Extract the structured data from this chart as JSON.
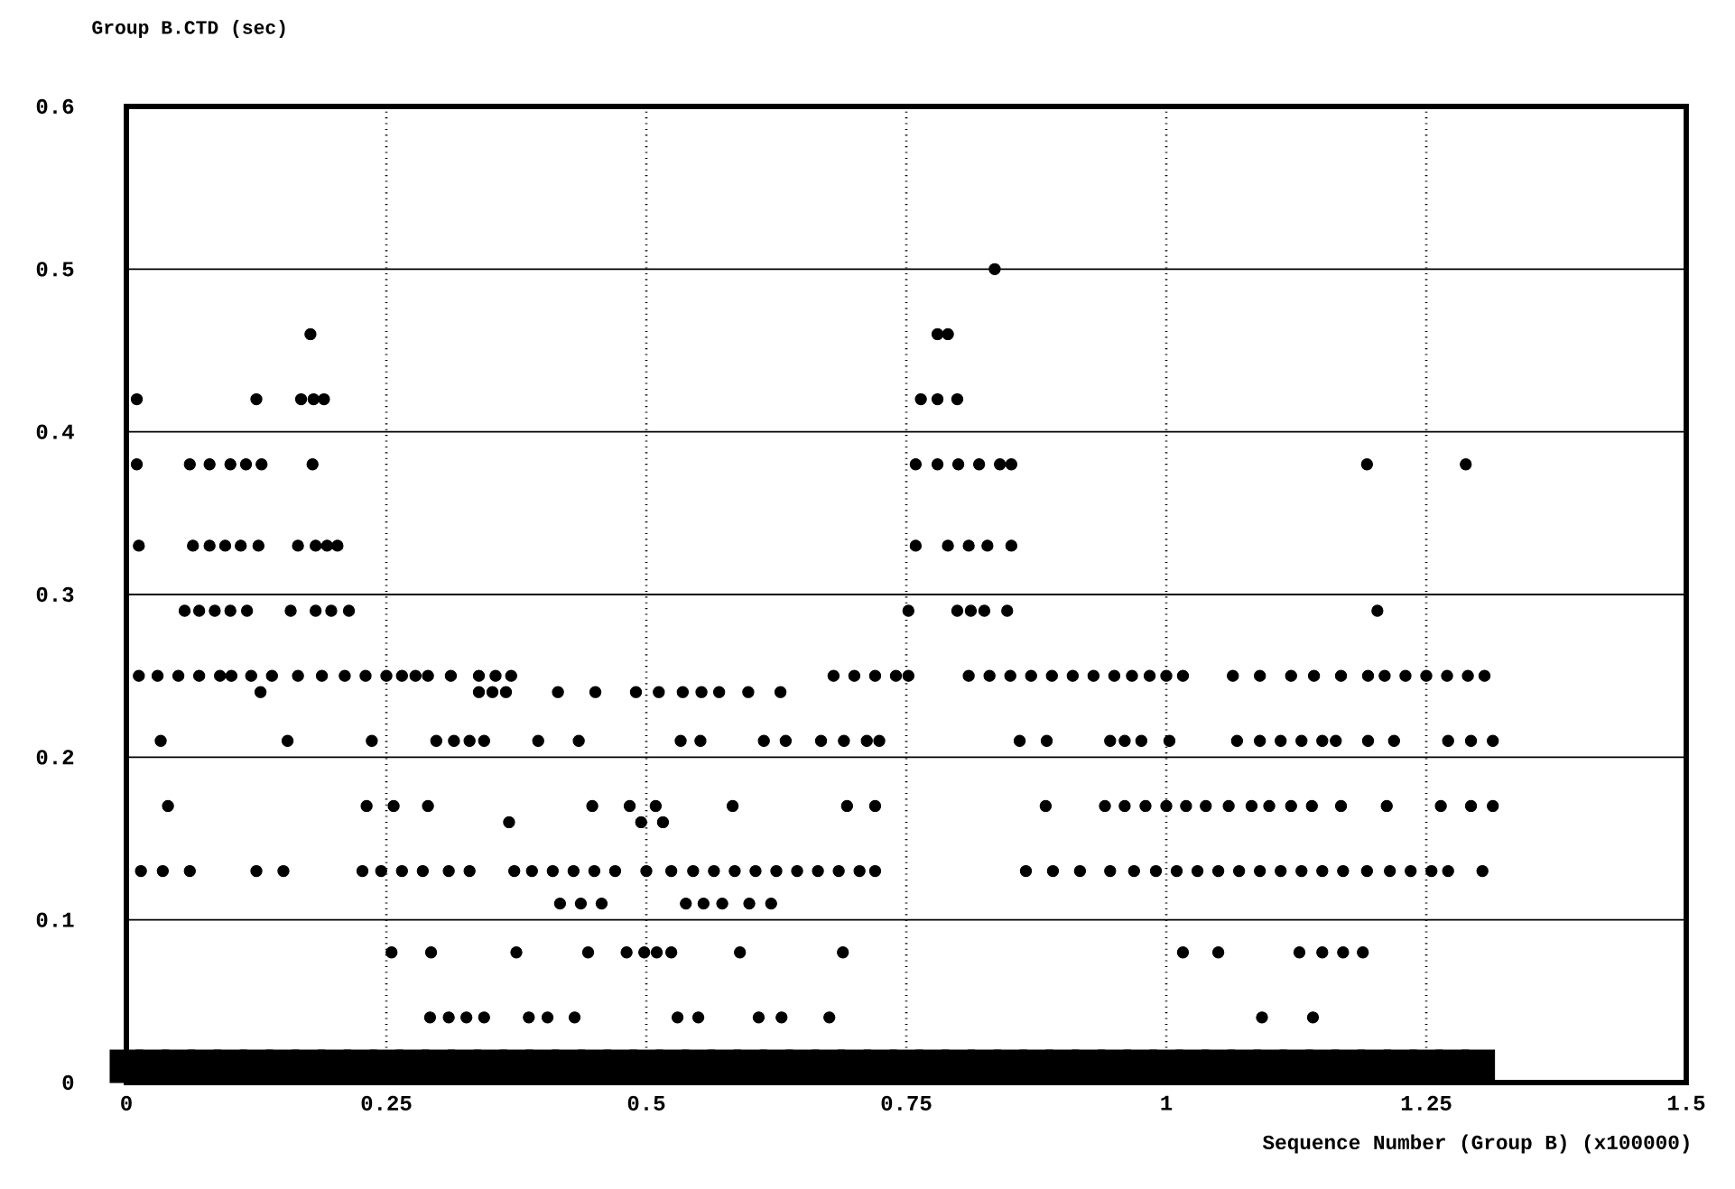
{
  "chart_data": {
    "type": "scatter",
    "ylabel": "Group B.CTD (sec)",
    "xlabel": "Sequence Number (Group B) (x100000)",
    "xlim": [
      0,
      1.5
    ],
    "ylim": [
      0,
      0.6
    ],
    "xticks": [
      0,
      0.25,
      0.5,
      0.75,
      1,
      1.25,
      1.5
    ],
    "yticks": [
      0,
      0.1,
      0.2,
      0.3,
      0.4,
      0.5,
      0.6
    ],
    "grid": true,
    "marker": "circle",
    "series": [
      {
        "color": "#000000",
        "x": [
          0.835
        ],
        "values": [
          0.5
        ]
      },
      {
        "color": "#000000",
        "x": [
          0.177,
          0.78,
          0.79
        ],
        "values": [
          0.46,
          0.46,
          0.46
        ]
      },
      {
        "color": "#000000",
        "x": [
          0.01,
          0.125,
          0.168,
          0.18,
          0.19,
          0.764,
          0.78,
          0.799
        ],
        "values": [
          0.42,
          0.42,
          0.42,
          0.42,
          0.42,
          0.42,
          0.42,
          0.42
        ]
      },
      {
        "color": "#000000",
        "x": [
          0.01,
          0.061,
          0.08,
          0.1,
          0.115,
          0.13,
          0.179,
          0.759,
          0.78,
          0.8,
          0.82,
          0.84,
          0.851,
          1.193,
          1.288
        ],
        "values": [
          0.38,
          0.38,
          0.38,
          0.38,
          0.38,
          0.38,
          0.38,
          0.38,
          0.38,
          0.38,
          0.38,
          0.38,
          0.38,
          0.38,
          0.38
        ]
      },
      {
        "color": "#000000",
        "x": [
          0.012,
          0.064,
          0.08,
          0.095,
          0.11,
          0.127,
          0.165,
          0.182,
          0.193,
          0.203,
          0.759,
          0.79,
          0.81,
          0.828,
          0.851
        ],
        "values": [
          0.33,
          0.33,
          0.33,
          0.33,
          0.33,
          0.33,
          0.33,
          0.33,
          0.33,
          0.33,
          0.33,
          0.33,
          0.33,
          0.33,
          0.33
        ]
      },
      {
        "color": "#000000",
        "x": [
          0.056,
          0.07,
          0.085,
          0.1,
          0.116,
          0.158,
          0.182,
          0.197,
          0.214,
          0.752,
          0.799,
          0.812,
          0.825,
          0.847,
          1.203
        ],
        "values": [
          0.29,
          0.29,
          0.29,
          0.29,
          0.29,
          0.29,
          0.29,
          0.29,
          0.29,
          0.29,
          0.29,
          0.29,
          0.29,
          0.29,
          0.29
        ]
      },
      {
        "color": "#000000",
        "x": [
          0.012,
          0.03,
          0.05,
          0.07,
          0.09,
          0.101,
          0.12,
          0.14,
          0.165,
          0.188,
          0.21,
          0.23,
          0.25,
          0.265,
          0.278,
          0.29,
          0.312,
          0.339,
          0.355,
          0.37,
          0.68,
          0.7,
          0.72,
          0.74,
          0.752,
          0.81,
          0.83,
          0.85,
          0.87,
          0.89,
          0.91,
          0.93,
          0.95,
          0.967,
          0.984,
          1.0,
          1.016,
          1.064,
          1.09,
          1.12,
          1.142,
          1.168,
          1.194,
          1.21,
          1.23,
          1.25,
          1.27,
          1.29,
          1.306
        ],
        "values": [
          0.25,
          0.25,
          0.25,
          0.25,
          0.25,
          0.25,
          0.25,
          0.25,
          0.25,
          0.25,
          0.25,
          0.25,
          0.25,
          0.25,
          0.25,
          0.25,
          0.25,
          0.25,
          0.25,
          0.25,
          0.25,
          0.25,
          0.25,
          0.25,
          0.25,
          0.25,
          0.25,
          0.25,
          0.25,
          0.25,
          0.25,
          0.25,
          0.25,
          0.25,
          0.25,
          0.25,
          0.25,
          0.25,
          0.25,
          0.25,
          0.25,
          0.25,
          0.25,
          0.25,
          0.25,
          0.25,
          0.25,
          0.25,
          0.25
        ]
      },
      {
        "color": "#000000",
        "x": [
          0.129,
          0.339,
          0.352,
          0.365,
          0.415,
          0.451,
          0.49,
          0.512,
          0.535,
          0.553,
          0.57,
          0.598,
          0.629
        ],
        "values": [
          0.24,
          0.24,
          0.24,
          0.24,
          0.24,
          0.24,
          0.24,
          0.24,
          0.24,
          0.24,
          0.24,
          0.24,
          0.24
        ]
      },
      {
        "color": "#000000",
        "x": [
          0.033,
          0.155,
          0.236,
          0.298,
          0.315,
          0.33,
          0.344,
          0.396,
          0.435,
          0.533,
          0.552,
          0.613,
          0.634,
          0.668,
          0.69,
          0.712,
          0.724,
          0.859,
          0.885,
          0.946,
          0.96,
          0.976,
          1.003,
          1.068,
          1.09,
          1.11,
          1.13,
          1.15,
          1.163,
          1.194,
          1.219,
          1.271,
          1.293,
          1.314
        ],
        "values": [
          0.21,
          0.21,
          0.21,
          0.21,
          0.21,
          0.21,
          0.21,
          0.21,
          0.21,
          0.21,
          0.21,
          0.21,
          0.21,
          0.21,
          0.21,
          0.21,
          0.21,
          0.21,
          0.21,
          0.21,
          0.21,
          0.21,
          0.21,
          0.21,
          0.21,
          0.21,
          0.21,
          0.21,
          0.21,
          0.21,
          0.21,
          0.21,
          0.21,
          0.21
        ]
      },
      {
        "color": "#000000",
        "x": [
          0.04,
          0.231,
          0.257,
          0.29,
          0.448,
          0.484,
          0.509,
          0.583,
          0.693,
          0.72,
          0.884,
          0.941,
          0.96,
          0.98,
          1.0,
          1.019,
          1.038,
          1.06,
          1.082,
          1.099,
          1.12,
          1.14,
          1.168,
          1.212,
          1.264,
          1.293,
          1.314
        ],
        "values": [
          0.17,
          0.17,
          0.17,
          0.17,
          0.17,
          0.17,
          0.17,
          0.17,
          0.17,
          0.17,
          0.17,
          0.17,
          0.17,
          0.17,
          0.17,
          0.17,
          0.17,
          0.17,
          0.17,
          0.17,
          0.17,
          0.17,
          0.17,
          0.17,
          0.17,
          0.17,
          0.17
        ]
      },
      {
        "color": "#000000",
        "x": [
          0.368,
          0.495,
          0.516
        ],
        "values": [
          0.16,
          0.16,
          0.16
        ]
      },
      {
        "color": "#000000",
        "x": [
          0.014,
          0.035,
          0.061,
          0.125,
          0.151,
          0.227,
          0.245,
          0.265,
          0.285,
          0.31,
          0.33,
          0.373,
          0.39,
          0.41,
          0.43,
          0.45,
          0.47,
          0.5,
          0.524,
          0.545,
          0.565,
          0.585,
          0.605,
          0.625,
          0.645,
          0.665,
          0.685,
          0.705,
          0.72,
          0.865,
          0.891,
          0.917,
          0.946,
          0.969,
          0.99,
          1.01,
          1.03,
          1.05,
          1.07,
          1.09,
          1.11,
          1.13,
          1.15,
          1.17,
          1.193,
          1.215,
          1.235,
          1.255,
          1.271,
          1.304
        ],
        "values": [
          0.13,
          0.13,
          0.13,
          0.13,
          0.13,
          0.13,
          0.13,
          0.13,
          0.13,
          0.13,
          0.13,
          0.13,
          0.13,
          0.13,
          0.13,
          0.13,
          0.13,
          0.13,
          0.13,
          0.13,
          0.13,
          0.13,
          0.13,
          0.13,
          0.13,
          0.13,
          0.13,
          0.13,
          0.13,
          0.13,
          0.13,
          0.13,
          0.13,
          0.13,
          0.13,
          0.13,
          0.13,
          0.13,
          0.13,
          0.13,
          0.13,
          0.13,
          0.13,
          0.13,
          0.13,
          0.13,
          0.13,
          0.13,
          0.13,
          0.13
        ]
      },
      {
        "color": "#000000",
        "x": [
          0.417,
          0.437,
          0.457,
          0.538,
          0.555,
          0.573,
          0.599,
          0.62
        ],
        "values": [
          0.11,
          0.11,
          0.11,
          0.11,
          0.11,
          0.11,
          0.11,
          0.11
        ]
      },
      {
        "color": "#000000",
        "x": [
          0.255,
          0.293,
          0.375,
          0.444,
          0.481,
          0.498,
          0.51,
          0.524,
          0.59,
          0.689,
          1.016,
          1.05,
          1.128,
          1.15,
          1.17,
          1.189
        ],
        "values": [
          0.08,
          0.08,
          0.08,
          0.08,
          0.08,
          0.08,
          0.08,
          0.08,
          0.08,
          0.08,
          0.08,
          0.08,
          0.08,
          0.08,
          0.08,
          0.08
        ]
      },
      {
        "color": "#000000",
        "x": [
          0.292,
          0.31,
          0.327,
          0.344,
          0.387,
          0.405,
          0.431,
          0.53,
          0.55,
          0.608,
          0.63,
          0.676,
          1.092,
          1.141
        ],
        "values": [
          0.04,
          0.04,
          0.04,
          0.04,
          0.04,
          0.04,
          0.04,
          0.04,
          0.04,
          0.04,
          0.04,
          0.04,
          0.04,
          0.04
        ]
      },
      {
        "color": "#000000",
        "marker": "square",
        "x": [
          0,
          0.025,
          0.05,
          0.075,
          0.1,
          0.125,
          0.15,
          0.175,
          0.2,
          0.225,
          0.25,
          0.275,
          0.3,
          0.325,
          0.35,
          0.375,
          0.4,
          0.425,
          0.45,
          0.475,
          0.5,
          0.525,
          0.55,
          0.575,
          0.6,
          0.625,
          0.65,
          0.675,
          0.7,
          0.725,
          0.75,
          0.775,
          0.8,
          0.825,
          0.85,
          0.875,
          0.9,
          0.925,
          0.95,
          0.975,
          1,
          1.025,
          1.05,
          1.075,
          1.1,
          1.125,
          1.15,
          1.175,
          1.2,
          1.225,
          1.25,
          1.275,
          1.3
        ],
        "values": [
          0.01,
          0.01,
          0.01,
          0.01,
          0.01,
          0.01,
          0.01,
          0.01,
          0.01,
          0.01,
          0.01,
          0.01,
          0.01,
          0.01,
          0.01,
          0.01,
          0.01,
          0.01,
          0.01,
          0.01,
          0.01,
          0.01,
          0.01,
          0.01,
          0.01,
          0.01,
          0.01,
          0.01,
          0.01,
          0.01,
          0.01,
          0.01,
          0.01,
          0.01,
          0.01,
          0.01,
          0.01,
          0.01,
          0.01,
          0.01,
          0.01,
          0.01,
          0.01,
          0.01,
          0.01,
          0.01,
          0.01,
          0.01,
          0.01,
          0.01,
          0.01,
          0.01,
          0.01
        ]
      }
    ]
  }
}
